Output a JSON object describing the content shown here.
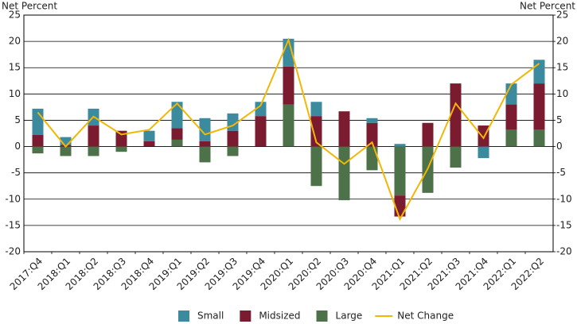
{
  "chart_data": {
    "type": "stacked-bar-line",
    "y_label": "Net Percent",
    "y2_label": "Net Percent",
    "categories": [
      "2017:Q4",
      "2018:Q1",
      "2018:Q2",
      "2018:Q3",
      "2018:Q4",
      "2019:Q1",
      "2019:Q2",
      "2019:Q3",
      "2019:Q4",
      "2020:Q1",
      "2020:Q2",
      "2020:Q3",
      "2020:Q4",
      "2021:Q1",
      "2021:Q2",
      "2021:Q3",
      "2021:Q4",
      "2022:Q1",
      "2022:Q2"
    ],
    "series": [
      {
        "name": "Small",
        "color": "#3b8a9d",
        "kind": "bar",
        "values": [
          5.0,
          1.5,
          3.2,
          0,
          2.0,
          5.0,
          4.4,
          3.3,
          2.7,
          5.3,
          2.7,
          0,
          0.9,
          0.5,
          0,
          0,
          -2.2,
          4.0,
          4.5
        ]
      },
      {
        "name": "Midsized",
        "color": "#7b1b30",
        "kind": "bar",
        "values": [
          2.2,
          0.3,
          4.0,
          3.0,
          1.0,
          2.2,
          1.0,
          3.0,
          5.8,
          7.2,
          5.8,
          6.7,
          4.5,
          -4.0,
          4.5,
          12.0,
          4.0,
          4.8,
          8.8
        ]
      },
      {
        "name": "Large",
        "color": "#4d7149",
        "kind": "bar",
        "values": [
          -1.3,
          -1.8,
          -1.8,
          -1.0,
          0,
          1.3,
          -3.0,
          -1.8,
          0,
          8.0,
          -7.5,
          -10.2,
          -4.5,
          -9.3,
          -8.8,
          -4.0,
          0,
          3.2,
          3.2
        ]
      },
      {
        "name": "Net Change",
        "color": "#f2b705",
        "kind": "line",
        "values": [
          6.5,
          0,
          5.7,
          2.3,
          3.2,
          8.2,
          2.3,
          4.0,
          7.8,
          20.3,
          0.8,
          -3.3,
          0.8,
          -13.8,
          -4.2,
          8.2,
          1.6,
          11.8,
          15.8
        ]
      }
    ],
    "legend_order": [
      0,
      1,
      2,
      3
    ],
    "ylim": [
      -20,
      25
    ],
    "yticks": [
      -20,
      -15,
      -10,
      -5,
      0,
      5,
      10,
      15,
      20,
      25
    ],
    "y2lim": [
      -20,
      25
    ],
    "y2ticks": [
      -20,
      -15,
      -10,
      -5,
      0,
      5,
      10,
      15,
      20,
      25
    ],
    "grid": true
  }
}
